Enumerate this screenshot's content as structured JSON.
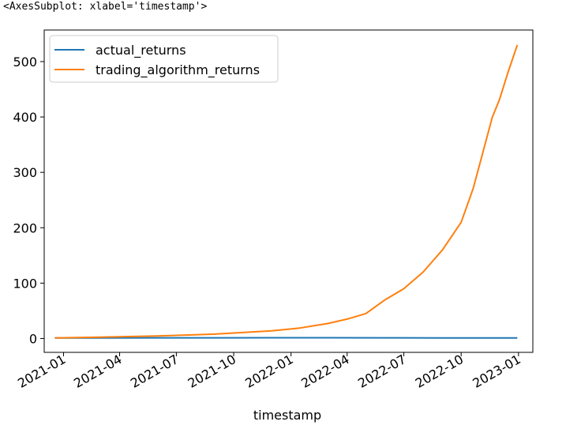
{
  "output_repr": "<AxesSubplot: xlabel='timestamp'>",
  "chart_data": {
    "type": "line",
    "xlabel": "timestamp",
    "ylabel": "",
    "xlim": [
      "2020-12-01",
      "2023-01-24"
    ],
    "ylim": [
      -25,
      557
    ],
    "x_ticks": [
      "2021-01-01",
      "2021-04-01",
      "2021-07-01",
      "2021-10-01",
      "2022-01-01",
      "2022-04-01",
      "2022-07-01",
      "2022-10-01",
      "2023-01-01"
    ],
    "x_tick_labels": [
      "2021-01",
      "2021-04",
      "2021-07",
      "2021-10",
      "2022-01",
      "2022-04",
      "2022-07",
      "2022-10",
      "2023-01"
    ],
    "y_ticks": [
      0,
      100,
      200,
      300,
      400,
      500
    ],
    "y_tick_labels": [
      "0",
      "100",
      "200",
      "300",
      "400",
      "500"
    ],
    "grid": false,
    "legend": {
      "placement": "upper-left",
      "entries": [
        "actual_returns",
        "trading_algorithm_returns"
      ]
    },
    "series": [
      {
        "name": "actual_returns",
        "color": "#1f77b4",
        "points": [
          [
            "2020-12-18",
            1.0
          ],
          [
            "2021-03-01",
            1.1
          ],
          [
            "2021-06-01",
            1.2
          ],
          [
            "2021-09-01",
            1.3
          ],
          [
            "2021-12-01",
            1.4
          ],
          [
            "2022-03-01",
            1.35
          ],
          [
            "2022-06-01",
            1.2
          ],
          [
            "2022-09-01",
            1.1
          ],
          [
            "2022-12-30",
            1.05
          ]
        ]
      },
      {
        "name": "trading_algorithm_returns",
        "color": "#ff7f0e",
        "points": [
          [
            "2020-12-18",
            1.0
          ],
          [
            "2021-03-01",
            2.5
          ],
          [
            "2021-06-01",
            4.5
          ],
          [
            "2021-09-01",
            8.0
          ],
          [
            "2021-12-01",
            14.0
          ],
          [
            "2022-01-15",
            19.0
          ],
          [
            "2022-03-01",
            27.0
          ],
          [
            "2022-04-01",
            35.0
          ],
          [
            "2022-05-01",
            45.0
          ],
          [
            "2022-06-01",
            70.0
          ],
          [
            "2022-07-01",
            90.0
          ],
          [
            "2022-08-01",
            120.0
          ],
          [
            "2022-09-01",
            160.0
          ],
          [
            "2022-10-01",
            210.0
          ],
          [
            "2022-10-20",
            270.0
          ],
          [
            "2022-11-01",
            320.0
          ],
          [
            "2022-11-20",
            400.0
          ],
          [
            "2022-12-01",
            430.0
          ],
          [
            "2022-12-15",
            480.0
          ],
          [
            "2022-12-30",
            530.0
          ]
        ]
      }
    ]
  }
}
